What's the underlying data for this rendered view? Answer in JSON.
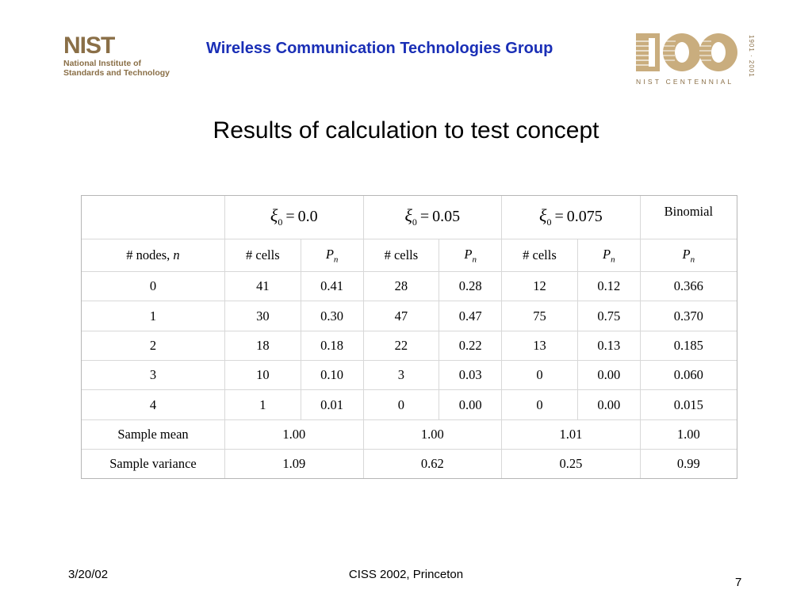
{
  "header": {
    "logo_word": "NIST",
    "logo_line1": "National Institute of",
    "logo_line2": "Standards and Technology",
    "group": "Wireless Communication Technologies Group",
    "centennial_years": "1901 · 2001",
    "centennial_label": "NIST CENTENNIAL",
    "centennial_number": "100"
  },
  "title": "Results of calculation to test concept",
  "table": {
    "groups": [
      {
        "xi_sub": "0",
        "value": "0.0"
      },
      {
        "xi_sub": "0",
        "value": "0.05"
      },
      {
        "xi_sub": "0",
        "value": "0.075"
      }
    ],
    "binomial_label": "Binomial",
    "sub_headers": {
      "nodes": "# nodes,",
      "nodes_var": "n",
      "cells": "# cells",
      "p": "P",
      "p_sub": "n"
    },
    "rows": [
      {
        "n": "0",
        "c1": "41",
        "p1": "0.41",
        "c2": "28",
        "p2": "0.28",
        "c3": "12",
        "p3": "0.12",
        "binom": "0.366"
      },
      {
        "n": "1",
        "c1": "30",
        "p1": "0.30",
        "c2": "47",
        "p2": "0.47",
        "c3": "75",
        "p3": "0.75",
        "binom": "0.370"
      },
      {
        "n": "2",
        "c1": "18",
        "p1": "0.18",
        "c2": "22",
        "p2": "0.22",
        "c3": "13",
        "p3": "0.13",
        "binom": "0.185"
      },
      {
        "n": "3",
        "c1": "10",
        "p1": "0.10",
        "c2": "3",
        "p2": "0.03",
        "c3": "0",
        "p3": "0.00",
        "binom": "0.060"
      },
      {
        "n": "4",
        "c1": "1",
        "p1": "0.01",
        "c2": "0",
        "p2": "0.00",
        "c3": "0",
        "p3": "0.00",
        "binom": "0.015"
      }
    ],
    "summary": [
      {
        "label": "Sample mean",
        "g1": "1.00",
        "g2": "1.00",
        "g3": "1.01",
        "binom": "1.00"
      },
      {
        "label": "Sample variance",
        "g1": "1.09",
        "g2": "0.62",
        "g3": "0.25",
        "binom": "0.99"
      }
    ]
  },
  "footer": {
    "date": "3/20/02",
    "center": "CISS 2002, Princeton",
    "page": "7"
  },
  "colors": {
    "nist_brown": "#8a6f47",
    "group_blue": "#1a2fb6",
    "centennial_tan": "#c9ad7e"
  }
}
